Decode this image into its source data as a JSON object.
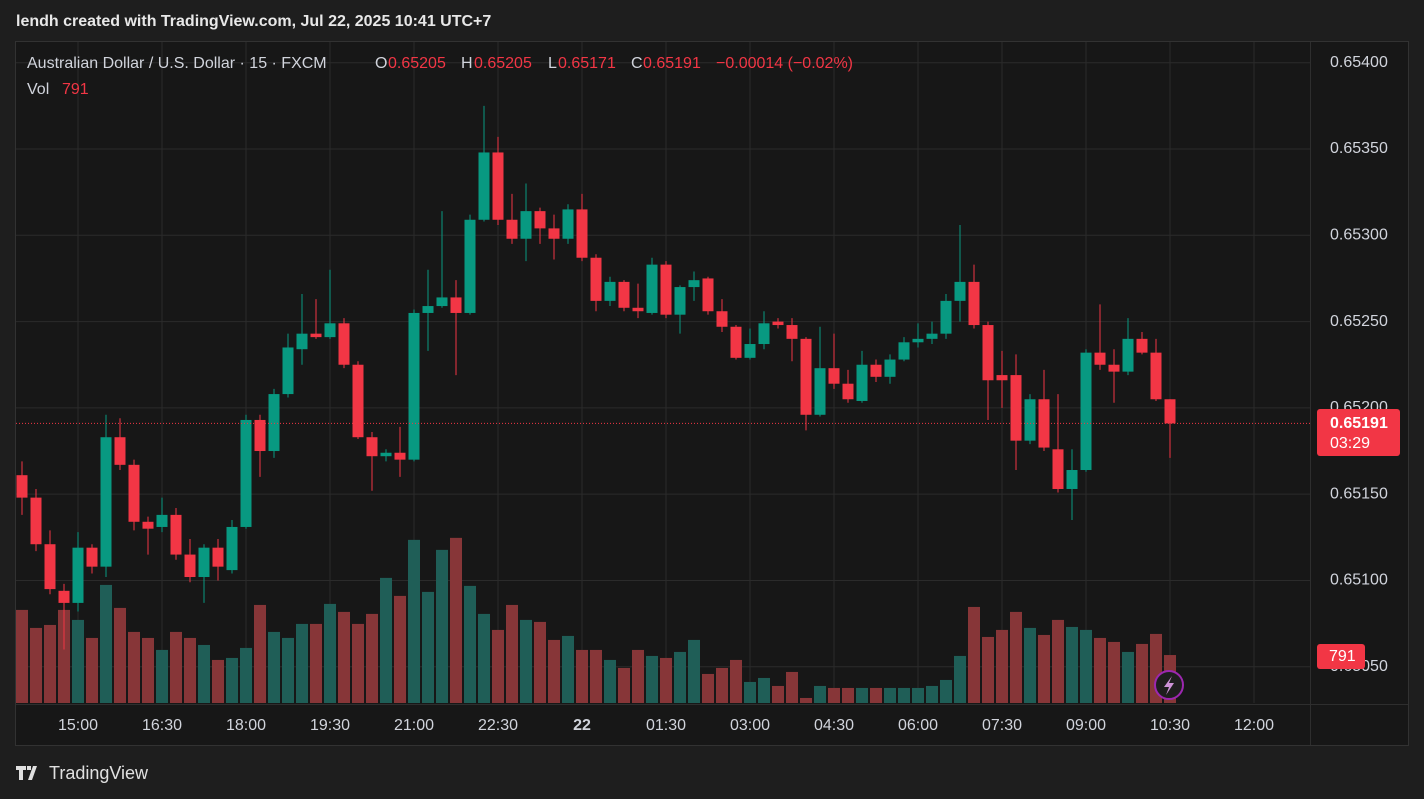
{
  "chart_data": {
    "type": "candlestick",
    "watermark": "lendh created with TradingView.com, Jul 22, 2025 10:41 UTC+7",
    "symbol": "Australian Dollar / U.S. Dollar · 15 · FXCM",
    "open_label": "O",
    "high_label": "H",
    "low_label": "L",
    "close_label": "C",
    "header_open": 0.65205,
    "header_high": 0.65205,
    "header_low": 0.65171,
    "header_close": 0.65191,
    "change": "−0.00014 (−0.02%)",
    "volume_label": "Vol",
    "last_volume": 791,
    "last_price": 0.65191,
    "countdown": "03:29",
    "brand": "TradingView",
    "up_color": "#089981",
    "down_color": "#f23645",
    "volume_up_color": "#1f5e57",
    "volume_down_color": "#873638",
    "x": [
      "14:00",
      "14:15",
      "14:30",
      "14:45",
      "15:00",
      "15:15",
      "15:30",
      "15:45",
      "16:00",
      "16:15",
      "16:30",
      "16:45",
      "17:00",
      "17:15",
      "17:30",
      "17:45",
      "18:00",
      "18:15",
      "18:30",
      "18:45",
      "19:00",
      "19:15",
      "19:30",
      "19:45",
      "20:00",
      "20:15",
      "20:30",
      "20:45",
      "21:00",
      "21:15",
      "21:30",
      "21:45",
      "22:00",
      "22:15",
      "22:30",
      "22:45",
      "23:00",
      "23:15",
      "23:30",
      "23:45",
      "00:00",
      "00:15",
      "00:30",
      "00:45",
      "01:00",
      "01:15",
      "01:30",
      "01:45",
      "02:00",
      "02:15",
      "02:30",
      "02:45",
      "03:00",
      "03:15",
      "03:30",
      "03:45",
      "04:00",
      "04:15",
      "04:30",
      "04:45",
      "05:00",
      "05:15",
      "05:30",
      "05:45",
      "06:00",
      "06:15",
      "06:30",
      "06:45",
      "07:00",
      "07:15",
      "07:30",
      "07:45",
      "08:00",
      "08:15",
      "08:30",
      "08:45",
      "09:00",
      "09:15",
      "09:30",
      "09:45",
      "10:00",
      "10:15",
      "10:30"
    ],
    "open": [
      0.65161,
      0.65148,
      0.65121,
      0.65094,
      0.65087,
      0.65119,
      0.65108,
      0.65183,
      0.65167,
      0.65134,
      0.65131,
      0.65138,
      0.65115,
      0.65102,
      0.65119,
      0.65106,
      0.65131,
      0.65193,
      0.65175,
      0.65208,
      0.65234,
      0.65243,
      0.65241,
      0.65249,
      0.65225,
      0.65183,
      0.65172,
      0.65174,
      0.6517,
      0.65255,
      0.65259,
      0.65264,
      0.65255,
      0.65309,
      0.65348,
      0.65309,
      0.65298,
      0.65314,
      0.65304,
      0.65298,
      0.65315,
      0.65287,
      0.65262,
      0.65273,
      0.65258,
      0.65255,
      0.65283,
      0.65254,
      0.6527,
      0.65275,
      0.65256,
      0.65247,
      0.65229,
      0.65237,
      0.6525,
      0.65248,
      0.6524,
      0.65196,
      0.65223,
      0.65214,
      0.65204,
      0.65225,
      0.65218,
      0.65228,
      0.65238,
      0.6524,
      0.65243,
      0.65262,
      0.65273,
      0.65248,
      0.65219,
      0.65219,
      0.65181,
      0.65205,
      0.65176,
      0.65153,
      0.65164,
      0.65232,
      0.65225,
      0.65221,
      0.6524,
      0.65232,
      0.65205
    ],
    "high": [
      0.65169,
      0.65153,
      0.65129,
      0.65098,
      0.65128,
      0.65121,
      0.65196,
      0.65194,
      0.6517,
      0.65137,
      0.65148,
      0.65142,
      0.65124,
      0.65121,
      0.65124,
      0.65135,
      0.65196,
      0.65196,
      0.65211,
      0.65243,
      0.65266,
      0.65263,
      0.6528,
      0.65252,
      0.65227,
      0.65186,
      0.65176,
      0.65189,
      0.65257,
      0.6528,
      0.65314,
      0.65274,
      0.65312,
      0.65375,
      0.65357,
      0.65324,
      0.6533,
      0.65316,
      0.65312,
      0.65318,
      0.65324,
      0.65289,
      0.65276,
      0.65274,
      0.65272,
      0.65287,
      0.65285,
      0.65271,
      0.65279,
      0.65276,
      0.65263,
      0.65248,
      0.65246,
      0.65256,
      0.65252,
      0.65252,
      0.65241,
      0.65247,
      0.65243,
      0.65222,
      0.65233,
      0.65228,
      0.65231,
      0.65241,
      0.65249,
      0.6525,
      0.65266,
      0.65306,
      0.65283,
      0.6525,
      0.65233,
      0.65231,
      0.65208,
      0.65222,
      0.65208,
      0.65176,
      0.65234,
      0.6526,
      0.65234,
      0.65252,
      0.65244,
      0.6524,
      0.65205
    ],
    "low": [
      0.65138,
      0.65117,
      0.65092,
      0.6506,
      0.65082,
      0.65104,
      0.65102,
      0.65164,
      0.65129,
      0.65115,
      0.65128,
      0.65112,
      0.65099,
      0.65087,
      0.651,
      0.65104,
      0.6513,
      0.6516,
      0.65171,
      0.65206,
      0.65225,
      0.6524,
      0.6524,
      0.65223,
      0.65182,
      0.65152,
      0.65169,
      0.6516,
      0.65169,
      0.65233,
      0.65258,
      0.65219,
      0.65254,
      0.65308,
      0.65306,
      0.65295,
      0.65285,
      0.65295,
      0.65286,
      0.65295,
      0.65285,
      0.65256,
      0.65259,
      0.65256,
      0.65252,
      0.65254,
      0.65252,
      0.65243,
      0.65262,
      0.65254,
      0.65244,
      0.65228,
      0.65228,
      0.65234,
      0.65246,
      0.65227,
      0.65187,
      0.65195,
      0.65211,
      0.65203,
      0.65203,
      0.65215,
      0.65214,
      0.65227,
      0.65235,
      0.65237,
      0.6524,
      0.6525,
      0.65246,
      0.65193,
      0.652,
      0.65164,
      0.65179,
      0.65175,
      0.65151,
      0.65135,
      0.65163,
      0.65222,
      0.65203,
      0.65219,
      0.65231,
      0.65204,
      0.65171
    ],
    "close": [
      0.65148,
      0.65121,
      0.65095,
      0.65087,
      0.65119,
      0.65108,
      0.65183,
      0.65167,
      0.65134,
      0.6513,
      0.65138,
      0.65115,
      0.65102,
      0.65119,
      0.65108,
      0.65131,
      0.65193,
      0.65175,
      0.65208,
      0.65235,
      0.65243,
      0.65241,
      0.65249,
      0.65225,
      0.65183,
      0.65172,
      0.65174,
      0.6517,
      0.65255,
      0.65259,
      0.65264,
      0.65255,
      0.65309,
      0.65348,
      0.65309,
      0.65298,
      0.65314,
      0.65304,
      0.65298,
      0.65315,
      0.65287,
      0.65262,
      0.65273,
      0.65258,
      0.65256,
      0.65283,
      0.65254,
      0.6527,
      0.65274,
      0.65256,
      0.65247,
      0.65229,
      0.65237,
      0.65249,
      0.65248,
      0.6524,
      0.65196,
      0.65223,
      0.65214,
      0.65205,
      0.65225,
      0.65218,
      0.65228,
      0.65238,
      0.6524,
      0.65243,
      0.65262,
      0.65273,
      0.65248,
      0.65216,
      0.65216,
      0.65181,
      0.65205,
      0.65177,
      0.65153,
      0.65164,
      0.65232,
      0.65225,
      0.65221,
      0.6524,
      0.65232,
      0.65205,
      0.65191
    ],
    "volume": [
      1535,
      1238,
      1287,
      1535,
      1370,
      1073,
      1947,
      1568,
      1172,
      1073,
      875,
      1172,
      1073,
      957,
      710,
      743,
      908,
      1617,
      1172,
      1073,
      1304,
      1304,
      1634,
      1502,
      1304,
      1469,
      2063,
      1766,
      2690,
      1832,
      2525,
      2723,
      1931,
      1469,
      1205,
      1617,
      1370,
      1337,
      1040,
      1106,
      875,
      875,
      710,
      578,
      875,
      776,
      743,
      842,
      1040,
      479,
      578,
      710,
      347,
      413,
      281,
      512,
      83,
      281,
      248,
      248,
      248,
      248,
      248,
      248,
      248,
      281,
      380,
      776,
      1584,
      1089,
      1205,
      1502,
      1238,
      1122,
      1370,
      1254,
      1205,
      1073,
      1007,
      842,
      974,
      1139,
      791
    ],
    "ylim": [
      0.65029,
      0.65412
    ],
    "volume_lim": [
      0,
      10900
    ],
    "yticks": [
      {
        "value": 0.654,
        "label": "0.65400"
      },
      {
        "value": 0.6535,
        "label": "0.65350"
      },
      {
        "value": 0.653,
        "label": "0.65300"
      },
      {
        "value": 0.6525,
        "label": "0.65250"
      },
      {
        "value": 0.652,
        "label": "0.65200"
      },
      {
        "value": 0.6515,
        "label": "0.65150"
      },
      {
        "value": 0.651,
        "label": "0.65100"
      },
      {
        "value": 0.6505,
        "label": "0.65050"
      }
    ],
    "xticks": [
      {
        "value": "15:00",
        "label": "15:00"
      },
      {
        "value": "16:30",
        "label": "16:30"
      },
      {
        "value": "18:00",
        "label": "18:00"
      },
      {
        "value": "19:30",
        "label": "19:30"
      },
      {
        "value": "21:00",
        "label": "21:00"
      },
      {
        "value": "22:30",
        "label": "22:30"
      },
      {
        "value": "00:00",
        "label": "22"
      },
      {
        "value": "01:30",
        "label": "01:30"
      },
      {
        "value": "03:00",
        "label": "03:00"
      },
      {
        "value": "04:30",
        "label": "04:30"
      },
      {
        "value": "06:00",
        "label": "06:00"
      },
      {
        "value": "07:30",
        "label": "07:30"
      },
      {
        "value": "09:00",
        "label": "09:00"
      },
      {
        "value": "10:30",
        "label": "10:30"
      },
      {
        "value": "12:00",
        "label": "12:00"
      }
    ],
    "grid": true
  }
}
